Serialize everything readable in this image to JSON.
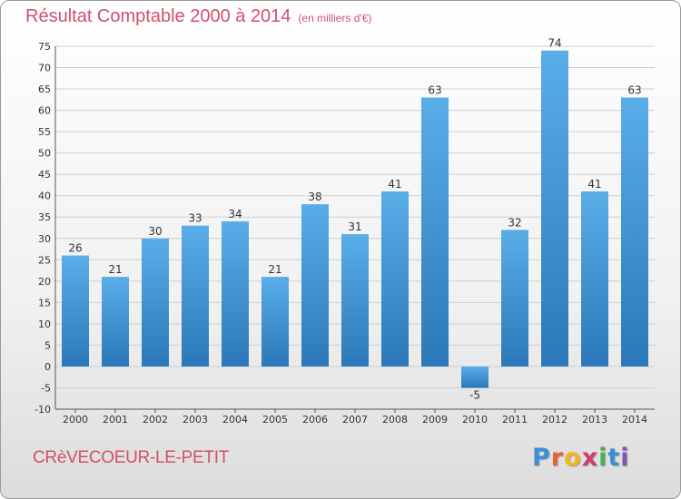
{
  "header": {
    "title": "Résultat Comptable 2000 à 2014",
    "subtitle": "(en milliers d'€)"
  },
  "footer": {
    "commune": "CRèVECOEUR-LE-PETIT",
    "logo_letters": [
      "P",
      "r",
      "o",
      "x",
      "i",
      "t",
      "i"
    ],
    "logo_colors": [
      "#3d8fd4",
      "#e8632b",
      "#f2b51a",
      "#d23b6c",
      "#46b04a",
      "#3d8fd4",
      "#8a4fb5"
    ]
  },
  "colors": {
    "bar_top": "#5aaee8",
    "bar_bottom": "#2a78b8",
    "grid": "#cfcfcf",
    "accent": "#d2506a"
  },
  "chart_data": {
    "type": "bar",
    "title": "Résultat Comptable 2000 à 2014",
    "ylabel": "(en milliers d'€)",
    "xlabel": "",
    "categories": [
      "2000",
      "2001",
      "2002",
      "2003",
      "2004",
      "2005",
      "2006",
      "2007",
      "2008",
      "2009",
      "2010",
      "2011",
      "2012",
      "2013",
      "2014"
    ],
    "values": [
      26,
      21,
      30,
      33,
      34,
      21,
      38,
      31,
      41,
      63,
      -5,
      32,
      74,
      41,
      63
    ],
    "ylim": [
      -10,
      75
    ],
    "yticks": [
      -10,
      -5,
      0,
      5,
      10,
      15,
      20,
      25,
      30,
      35,
      40,
      45,
      50,
      55,
      60,
      65,
      70,
      75
    ],
    "grid": true
  }
}
